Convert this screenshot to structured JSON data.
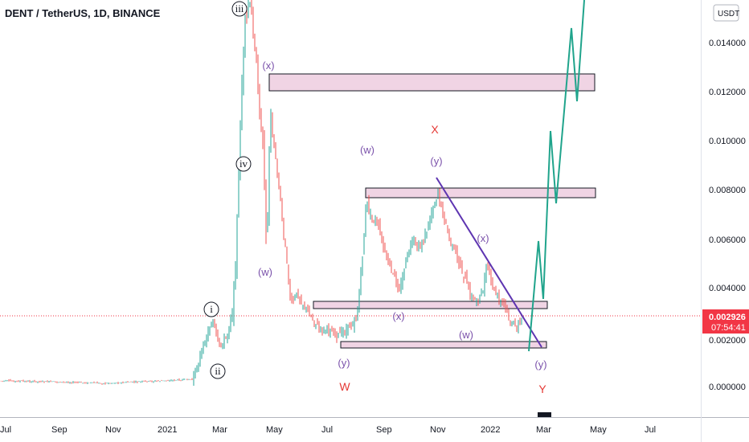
{
  "header": {
    "title": "DENT / TetherUS, 1D, BINANCE",
    "currency_button": "USDT"
  },
  "price_tag": {
    "price": "0.002926",
    "countdown": "07:54:41",
    "color": "#f23645"
  },
  "chart_data": {
    "type": "candlestick",
    "title": "DENT / TetherUS, 1D, BINANCE",
    "x_ticks": [
      "Jul",
      "Sep",
      "Nov",
      "2021",
      "Mar",
      "May",
      "Jul",
      "Sep",
      "Nov",
      "2022",
      "Mar",
      "May",
      "Jul"
    ],
    "y_ticks": [
      "0.000000",
      "0.002000",
      "0.004000",
      "0.006000",
      "0.008000",
      "0.010000",
      "0.012000",
      "0.014000"
    ],
    "ylim": [
      -0.0012,
      0.0152
    ],
    "up_color": "#26a69a",
    "down_color": "#ef5350",
    "approx_close_path": [
      [
        "Jul",
        0.0003
      ],
      [
        "Sep",
        0.0003
      ],
      [
        "Nov",
        0.0002
      ],
      [
        "2021",
        0.0003
      ],
      [
        "Feb",
        0.0004
      ],
      [
        "Mar",
        0.0028
      ],
      [
        "Apr",
        0.015
      ],
      [
        "May",
        0.0075
      ],
      [
        "Jun",
        0.0035
      ],
      [
        "Jul",
        0.0018
      ],
      [
        "Aug",
        0.002
      ],
      [
        "Aug",
        0.0088
      ],
      [
        "Sep",
        0.0052
      ],
      [
        "Oct",
        0.0066
      ],
      [
        "Nov",
        0.0086
      ],
      [
        "Dec",
        0.004
      ],
      [
        "2022",
        0.0034
      ],
      [
        "Feb",
        0.0029
      ]
    ],
    "zones": [
      {
        "low": 0.0121,
        "high": 0.0127
      },
      {
        "low": 0.0077,
        "high": 0.008
      },
      {
        "low": 0.0031,
        "high": 0.0033
      },
      {
        "low": 0.0016,
        "high": 0.0018
      }
    ],
    "wave_labels": {
      "circled": [
        "iii",
        "iv",
        "i",
        "ii"
      ],
      "purple": [
        "(x)",
        "(w)",
        "(y)",
        "(x)",
        "(y)",
        "(x)",
        "(w)",
        "(y)",
        "(w)"
      ],
      "red": [
        "X",
        "W",
        "Y"
      ]
    },
    "projection_color": "#20a48c",
    "trendline_color": "#5e35b1"
  }
}
